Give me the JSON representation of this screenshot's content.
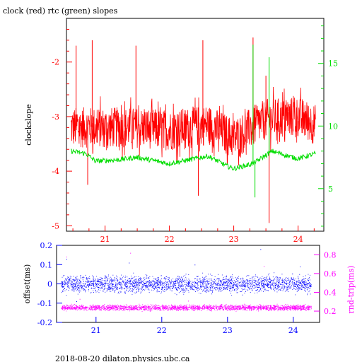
{
  "title": "clock (red) rtc (green) slopes",
  "footer": "2018-08-20  dilaton.physics.ubc.ca",
  "colors": {
    "clock": "#ff0000",
    "rtc": "#00dd00",
    "offset": "#0000ff",
    "rndtrip": "#ff00ff",
    "frame": "#000000"
  },
  "chart_data": [
    {
      "type": "line",
      "title": "clock (red) rtc (green) slopes",
      "xlabel": "",
      "xlim": [
        20.4,
        24.4
      ],
      "x_ticks": [
        21,
        22,
        23,
        24
      ],
      "x_tick_labels": [
        "21",
        "22",
        "23",
        "24"
      ],
      "ylabel": "clockslope",
      "ylim": [
        -5.1,
        -1.2
      ],
      "y_ticks": [
        -5,
        -4,
        -3,
        -2
      ],
      "y_tick_labels": [
        "-5",
        "-4",
        "-3",
        "-2"
      ],
      "y2lim": [
        1.6,
        18.6
      ],
      "y2_ticks": [
        5,
        10,
        15
      ],
      "y2_tick_labels": [
        "5",
        "10",
        "15"
      ],
      "grid": false,
      "series": [
        {
          "name": "clock",
          "axis": "left",
          "color": "#ff0000",
          "x_range": [
            20.47,
            24.27
          ],
          "baseline": [
            [
              20.47,
              -3.2
            ],
            [
              21.5,
              -3.2
            ],
            [
              22.0,
              -3.25
            ],
            [
              22.6,
              -3.15
            ],
            [
              23.0,
              -3.4
            ],
            [
              23.5,
              -3.05
            ],
            [
              24.0,
              -3.0
            ],
            [
              24.27,
              -3.15
            ]
          ],
          "spikes": [
            [
              20.55,
              -1.7
            ],
            [
              20.73,
              -4.25
            ],
            [
              20.8,
              -1.6
            ],
            [
              21.48,
              -1.7
            ],
            [
              22.45,
              -4.45
            ],
            [
              22.52,
              -1.6
            ],
            [
              23.3,
              -1.55
            ],
            [
              23.55,
              -4.95
            ],
            [
              23.5,
              -2.25
            ]
          ]
        },
        {
          "name": "rtc",
          "axis": "right",
          "color": "#00dd00",
          "x_range": [
            20.47,
            24.27
          ],
          "baseline": [
            [
              20.47,
              8.0
            ],
            [
              20.7,
              7.8
            ],
            [
              20.85,
              7.2
            ],
            [
              21.2,
              7.3
            ],
            [
              21.5,
              7.5
            ],
            [
              21.8,
              7.2
            ],
            [
              22.0,
              7.0
            ],
            [
              22.2,
              7.2
            ],
            [
              22.6,
              7.6
            ],
            [
              22.9,
              6.8
            ],
            [
              23.0,
              6.6
            ],
            [
              23.3,
              7.0
            ],
            [
              23.6,
              8.0
            ],
            [
              23.85,
              7.6
            ],
            [
              24.0,
              7.4
            ],
            [
              24.27,
              7.8
            ]
          ],
          "spikes": [
            [
              23.3,
              16.5
            ],
            [
              23.33,
              4.3
            ],
            [
              23.55,
              15.5
            ]
          ]
        }
      ]
    },
    {
      "type": "scatter",
      "xlabel": "",
      "xlim": [
        20.4,
        24.4
      ],
      "x_ticks": [
        21,
        22,
        23,
        24
      ],
      "x_tick_labels": [
        "21",
        "22",
        "23",
        "24"
      ],
      "ylabel": "offset(ms)",
      "ylim": [
        -0.2,
        0.2
      ],
      "y_ticks": [
        -0.2,
        -0.1,
        0,
        0.1,
        0.2
      ],
      "y_tick_labels": [
        "-0.2",
        "-0.1",
        "0",
        "0.1",
        "0.2"
      ],
      "y2label": "rnd-trip(ms)",
      "y2lim": [
        0.08,
        0.9
      ],
      "y2_ticks": [
        0.2,
        0.4,
        0.6,
        0.8
      ],
      "y2_tick_labels": [
        "0.2",
        "0.4",
        "0.6",
        "0.8"
      ],
      "grid": false,
      "series": [
        {
          "name": "offset",
          "axis": "left",
          "color": "#0000ff",
          "x_range": [
            20.47,
            24.27
          ],
          "center": 0.0,
          "spread": 0.045,
          "outliers": [
            [
              20.55,
              0.13
            ],
            [
              21.5,
              0.11
            ],
            [
              22.5,
              0.1
            ],
            [
              23.5,
              0.18
            ],
            [
              24.1,
              0.09
            ],
            [
              20.7,
              -0.09
            ],
            [
              23.5,
              -0.12
            ]
          ]
        },
        {
          "name": "rnd-trip",
          "axis": "right",
          "color": "#ff00ff",
          "x_range": [
            20.47,
            24.27
          ],
          "center": 0.24,
          "spread": 0.03,
          "outliers": [
            [
              20.55,
              0.78
            ],
            [
              21.52,
              0.82
            ],
            [
              23.55,
              0.68
            ],
            [
              20.75,
              0.33
            ],
            [
              22.4,
              0.31
            ]
          ]
        }
      ]
    }
  ]
}
